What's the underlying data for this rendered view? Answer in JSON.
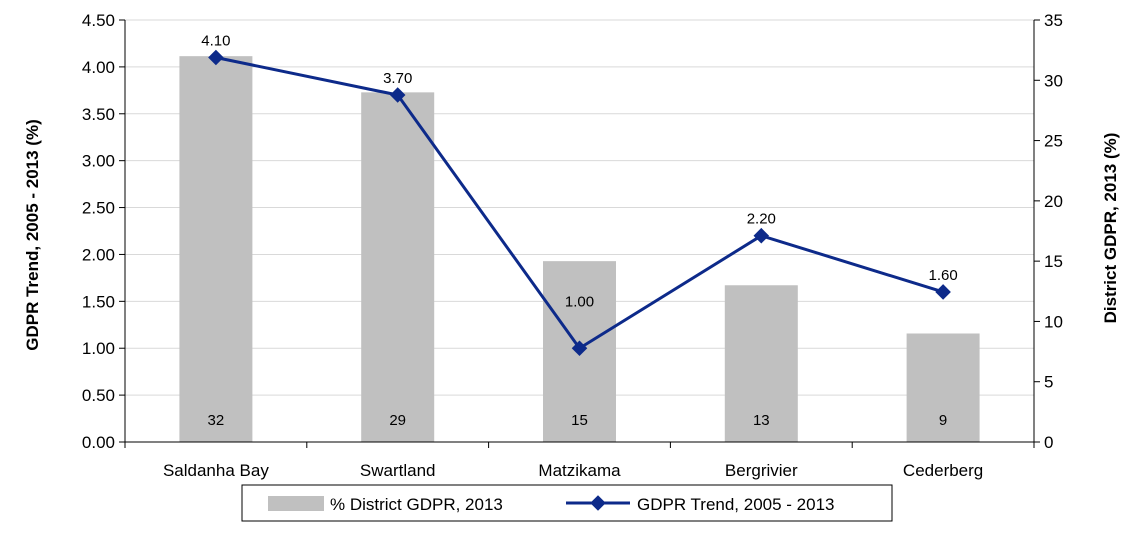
{
  "chart_data": {
    "type": "bar",
    "categories": [
      "Saldanha Bay",
      "Swartland",
      "Matzikama",
      "Bergrivier",
      "Cederberg"
    ],
    "series": [
      {
        "name": "% District GDPR, 2013",
        "type": "bar",
        "axis": "right",
        "values": [
          32,
          29,
          15,
          13,
          9
        ],
        "color": "#c0c0c0"
      },
      {
        "name": "GDPR Trend, 2005 - 2013",
        "type": "line",
        "axis": "left",
        "values": [
          4.1,
          3.7,
          1.0,
          2.2,
          1.6
        ],
        "color": "#0d2a8a",
        "marker": "diamond"
      }
    ],
    "ylabel": "GDPR Trend, 2005 - 2013 (%)",
    "y2label": "District GDPR, 2013 (%)",
    "ylim": [
      0,
      4.5
    ],
    "y2lim": [
      0,
      35
    ],
    "yticks": [
      "0.00",
      "0.50",
      "1.00",
      "1.50",
      "2.00",
      "2.50",
      "3.00",
      "3.50",
      "4.00",
      "4.50"
    ],
    "y2ticks": [
      "0",
      "5",
      "10",
      "15",
      "20",
      "25",
      "30",
      "35"
    ],
    "bar_labels": [
      "32",
      "29",
      "15",
      "13",
      "9"
    ],
    "line_labels": [
      "4.10",
      "3.70",
      "1.00",
      "2.20",
      "1.60"
    ],
    "grid": true,
    "legend": "bottom-center"
  }
}
